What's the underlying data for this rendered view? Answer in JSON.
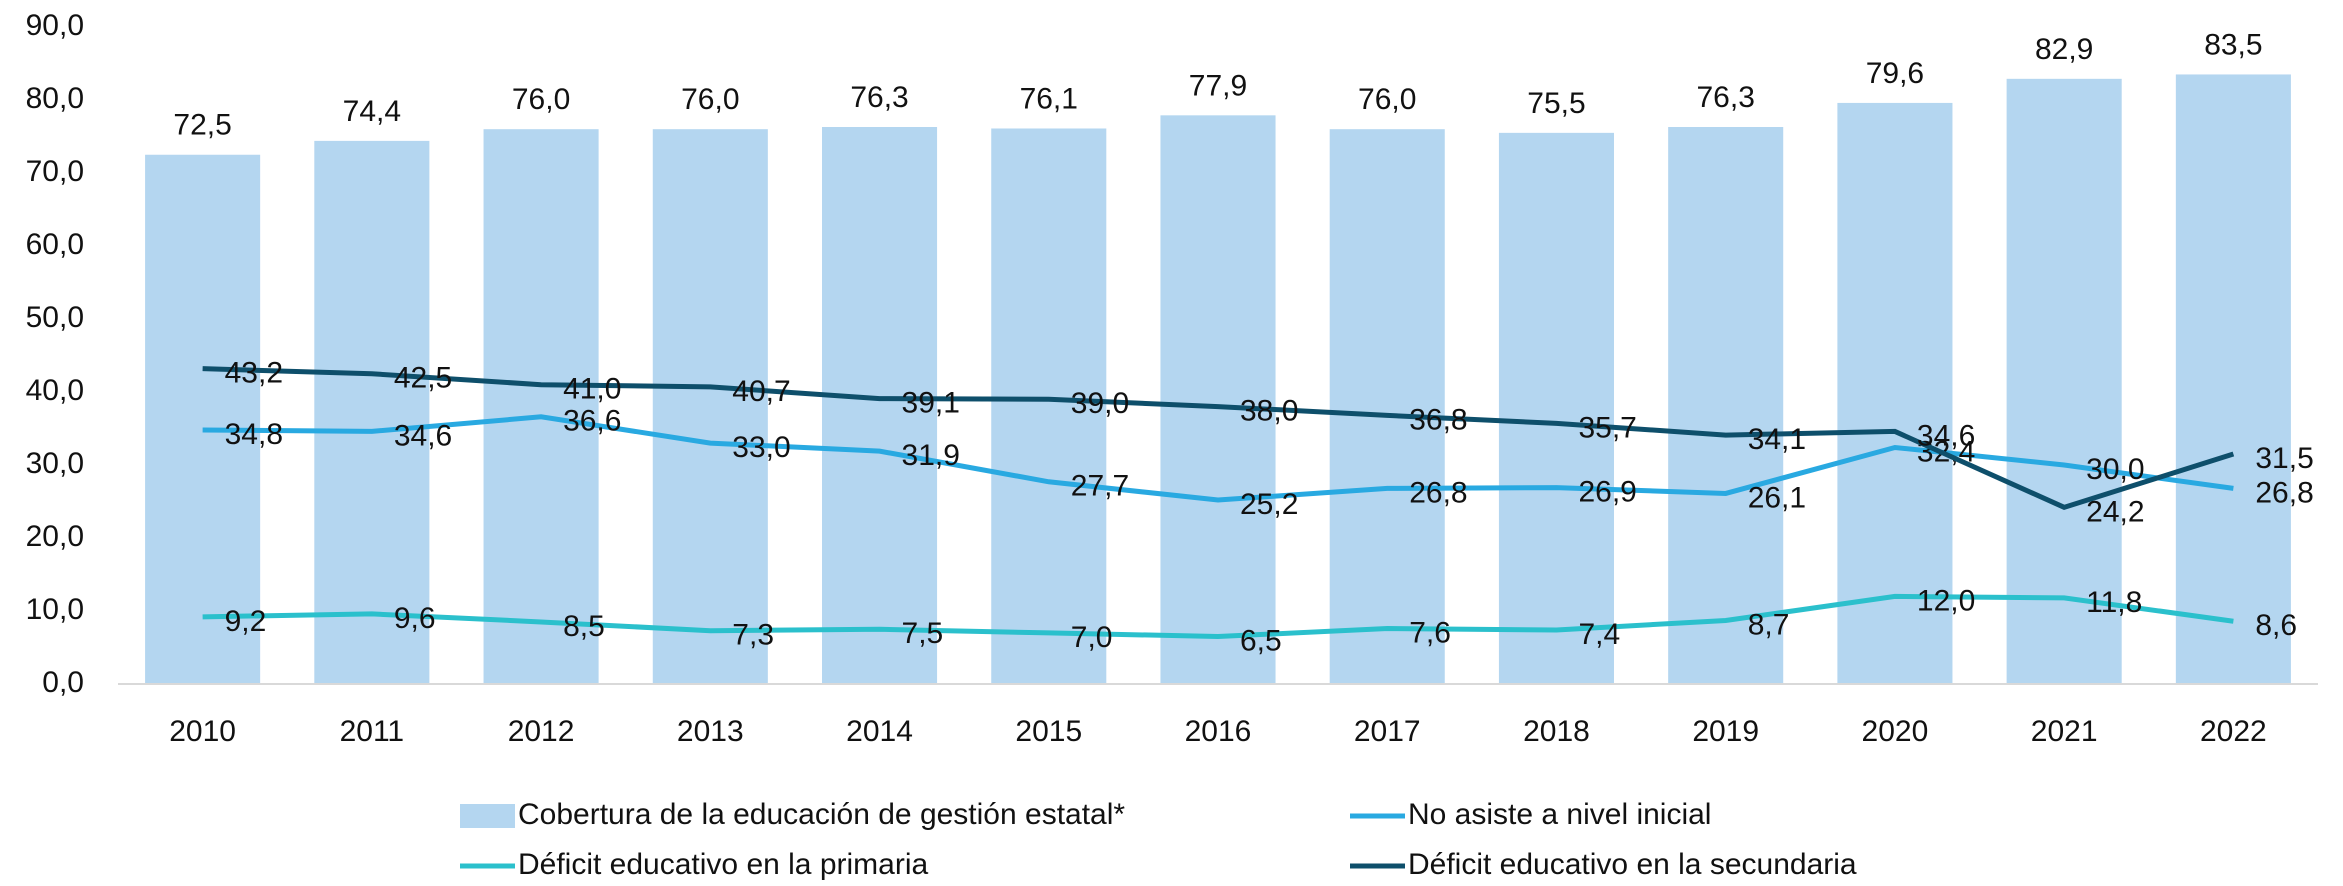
{
  "chart_data": {
    "type": "bar",
    "categories": [
      "2010",
      "2011",
      "2012",
      "2013",
      "2014",
      "2015",
      "2016",
      "2017",
      "2018",
      "2019",
      "2020",
      "2021",
      "2022"
    ],
    "ylim": [
      0,
      90
    ],
    "yticks": [
      {
        "value": 0,
        "label": "0,0"
      },
      {
        "value": 10,
        "label": "10,0"
      },
      {
        "value": 20,
        "label": "20,0"
      },
      {
        "value": 30,
        "label": "30,0"
      },
      {
        "value": 40,
        "label": "40,0"
      },
      {
        "value": 50,
        "label": "50,0"
      },
      {
        "value": 60,
        "label": "60,0"
      },
      {
        "value": 70,
        "label": "70,0"
      },
      {
        "value": 80,
        "label": "80,0"
      },
      {
        "value": 90,
        "label": "90,0"
      }
    ],
    "grid": false,
    "legend": "bottom",
    "series": [
      {
        "name": "Cobertura de la educación de gestión estatal*",
        "type": "bar",
        "color": "#b4d6f0",
        "values": [
          72.5,
          74.4,
          76.0,
          76.0,
          76.3,
          76.1,
          77.9,
          76.0,
          75.5,
          76.3,
          79.6,
          82.9,
          83.5
        ],
        "value_labels": [
          "72,5",
          "74,4",
          "76,0",
          "76,0",
          "76,3",
          "76,1",
          "77,9",
          "76,0",
          "75,5",
          "76,3",
          "79,6",
          "82,9",
          "83,5"
        ]
      },
      {
        "name": "No asiste a nivel inicial",
        "type": "line",
        "color": "#29a9e1",
        "values": [
          34.8,
          34.6,
          36.6,
          33.0,
          31.9,
          27.7,
          25.2,
          26.8,
          26.9,
          26.1,
          32.4,
          30.0,
          26.8
        ],
        "value_labels": [
          "34,8",
          "34,6",
          "36,6",
          "33,0",
          "31,9",
          "27,7",
          "25,2",
          "26,8",
          "26,9",
          "26,1",
          "32,4",
          "30,0",
          "26,8"
        ]
      },
      {
        "name": "Déficit educativo en la primaria",
        "type": "line",
        "color": "#2bc0cc",
        "values": [
          9.2,
          9.6,
          8.5,
          7.3,
          7.5,
          7.0,
          6.5,
          7.6,
          7.4,
          8.7,
          12.0,
          11.8,
          8.6
        ],
        "value_labels": [
          "9,2",
          "9,6",
          "8,5",
          "7,3",
          "7,5",
          "7,0",
          "6,5",
          "7,6",
          "7,4",
          "8,7",
          "12,0",
          "11,8",
          "8,6"
        ]
      },
      {
        "name": "Déficit educativo en la secundaria",
        "type": "line",
        "color": "#0e4f6b",
        "values": [
          43.2,
          42.5,
          41.0,
          40.7,
          39.1,
          39.0,
          38.0,
          36.8,
          35.7,
          34.1,
          34.6,
          24.2,
          31.5
        ],
        "value_labels": [
          "43,2",
          "42,5",
          "41,0",
          "40,7",
          "39,1",
          "39,0",
          "38,0",
          "36,8",
          "35,7",
          "34,1",
          "34,6",
          "24,2",
          "31,5"
        ]
      }
    ]
  }
}
